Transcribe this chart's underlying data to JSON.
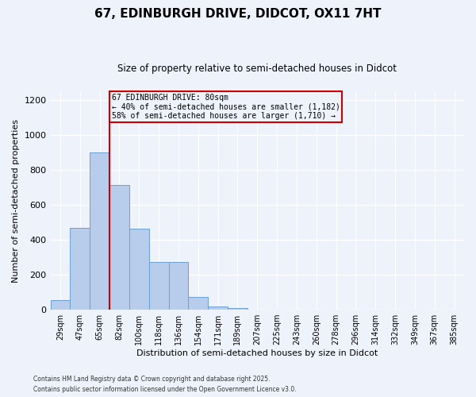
{
  "title1": "67, EDINBURGH DRIVE, DIDCOT, OX11 7HT",
  "title2": "Size of property relative to semi-detached houses in Didcot",
  "xlabel": "Distribution of semi-detached houses by size in Didcot",
  "ylabel": "Number of semi-detached properties",
  "bin_labels": [
    "29sqm",
    "47sqm",
    "65sqm",
    "82sqm",
    "100sqm",
    "118sqm",
    "136sqm",
    "154sqm",
    "171sqm",
    "189sqm",
    "207sqm",
    "225sqm",
    "243sqm",
    "260sqm",
    "278sqm",
    "296sqm",
    "314sqm",
    "332sqm",
    "349sqm",
    "367sqm",
    "385sqm"
  ],
  "bar_values": [
    55,
    470,
    900,
    715,
    465,
    275,
    275,
    75,
    20,
    10,
    0,
    0,
    0,
    0,
    0,
    0,
    0,
    0,
    0,
    0,
    0
  ],
  "bar_color": "#b8ccec",
  "bar_edge_color": "#6b9fd4",
  "vline_x": 3,
  "vline_color": "#cc0000",
  "annotation_title": "67 EDINBURGH DRIVE: 80sqm",
  "annotation_line2": "← 40% of semi-detached houses are smaller (1,182)",
  "annotation_line3": "58% of semi-detached houses are larger (1,710) →",
  "annotation_box_color": "#cc0000",
  "ylim": [
    0,
    1250
  ],
  "yticks": [
    0,
    200,
    400,
    600,
    800,
    1000,
    1200
  ],
  "footnote1": "Contains HM Land Registry data © Crown copyright and database right 2025.",
  "footnote2": "Contains public sector information licensed under the Open Government Licence v3.0.",
  "background_color": "#eef2fb",
  "grid_color": "#ffffff"
}
